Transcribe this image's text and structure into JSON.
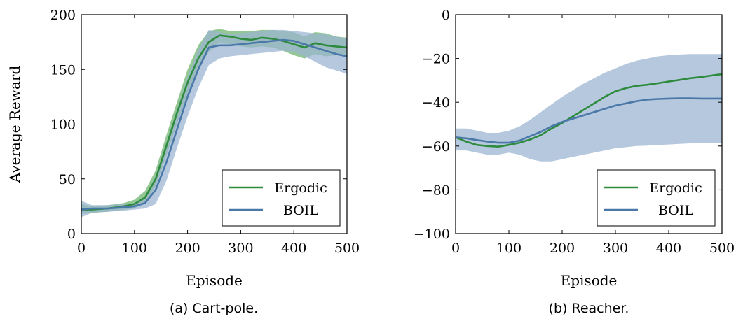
{
  "chart_data": [
    {
      "type": "line",
      "caption": "(a) Cart-pole.",
      "xlabel": "Episode",
      "ylabel": "Average Reward",
      "xlim": [
        0,
        500
      ],
      "ylim": [
        0,
        200
      ],
      "xticks": [
        0,
        100,
        200,
        300,
        400,
        500
      ],
      "yticks": [
        0,
        50,
        100,
        150,
        200
      ],
      "xtick_labels": [
        "0",
        "100",
        "200",
        "300",
        "400",
        "500"
      ],
      "ytick_labels": [
        "0",
        "50",
        "100",
        "150",
        "200"
      ],
      "legend": "bottom-right",
      "grid": false,
      "series": [
        {
          "name": "Ergodic",
          "color": "#2e8b3e",
          "band_color": "#6fb46f",
          "x": [
            0,
            20,
            50,
            80,
            100,
            120,
            140,
            160,
            180,
            200,
            220,
            240,
            260,
            280,
            300,
            320,
            340,
            360,
            380,
            400,
            420,
            440,
            460,
            480,
            500
          ],
          "y": [
            22,
            22,
            23,
            25,
            27,
            33,
            50,
            80,
            110,
            138,
            160,
            175,
            181,
            180,
            178,
            177,
            179,
            178,
            176,
            173,
            170,
            174,
            172,
            171,
            170
          ],
          "lower": [
            18,
            19,
            20,
            22,
            23,
            28,
            43,
            71,
            100,
            127,
            150,
            166,
            174,
            173,
            171,
            170,
            171,
            170,
            167,
            163,
            160,
            164,
            162,
            163,
            162
          ],
          "upper": [
            27,
            25,
            26,
            28,
            31,
            39,
            58,
            90,
            120,
            150,
            172,
            185,
            187,
            185,
            185,
            185,
            186,
            186,
            185,
            184,
            180,
            184,
            183,
            180,
            179
          ]
        },
        {
          "name": "BOIL",
          "color": "#4a78a8",
          "band_color": "#9cb6d2",
          "x": [
            0,
            20,
            50,
            80,
            100,
            120,
            140,
            160,
            180,
            200,
            220,
            240,
            260,
            280,
            300,
            320,
            340,
            360,
            380,
            400,
            420,
            440,
            460,
            480,
            500
          ],
          "y": [
            22,
            23,
            23,
            24,
            25,
            28,
            40,
            65,
            95,
            125,
            150,
            170,
            172,
            172,
            173,
            174,
            175,
            176,
            177,
            176,
            173,
            170,
            167,
            164,
            162
          ],
          "lower": [
            15,
            19,
            20,
            21,
            22,
            23,
            27,
            48,
            78,
            107,
            133,
            154,
            160,
            162,
            163,
            164,
            165,
            166,
            167,
            166,
            162,
            157,
            152,
            149,
            146
          ],
          "upper": [
            30,
            26,
            26,
            27,
            28,
            33,
            53,
            83,
            113,
            143,
            168,
            186,
            184,
            182,
            183,
            184,
            185,
            186,
            186,
            185,
            184,
            183,
            182,
            180,
            178
          ]
        }
      ]
    },
    {
      "type": "line",
      "caption": "(b) Reacher.",
      "xlabel": "Episode",
      "ylabel": "",
      "xlim": [
        0,
        500
      ],
      "ylim": [
        -100,
        0
      ],
      "xticks": [
        0,
        100,
        200,
        300,
        400,
        500
      ],
      "yticks": [
        -100,
        -80,
        -60,
        -40,
        -20,
        0
      ],
      "xtick_labels": [
        "0",
        "100",
        "200",
        "300",
        "400",
        "500"
      ],
      "ytick_labels": [
        "−100",
        "−80",
        "−60",
        "−40",
        "−20",
        "0"
      ],
      "legend": "bottom-right",
      "grid": false,
      "series": [
        {
          "name": "Ergodic",
          "color": "#2e8b3e",
          "band_color": "#6fb46f",
          "x": [
            0,
            20,
            40,
            60,
            80,
            100,
            120,
            140,
            160,
            180,
            200,
            220,
            240,
            260,
            280,
            300,
            320,
            340,
            360,
            380,
            400,
            420,
            440,
            460,
            480,
            500
          ],
          "y": [
            -56,
            -58,
            -59.5,
            -60,
            -60.3,
            -59.5,
            -58.5,
            -57,
            -55,
            -52,
            -49.5,
            -46.5,
            -43.5,
            -40.5,
            -37.5,
            -35,
            -33.5,
            -32.5,
            -32,
            -31.3,
            -30.5,
            -29.8,
            -29,
            -28.5,
            -27.8,
            -27.2
          ],
          "lower": [],
          "upper": []
        },
        {
          "name": "BOIL",
          "color": "#4a78a8",
          "band_color": "#9cb6d2",
          "x": [
            0,
            20,
            40,
            60,
            80,
            100,
            120,
            140,
            160,
            180,
            200,
            220,
            240,
            260,
            280,
            300,
            320,
            340,
            360,
            380,
            400,
            420,
            440,
            460,
            480,
            500
          ],
          "y": [
            -56,
            -56.5,
            -57.3,
            -58,
            -58.5,
            -58.5,
            -57.5,
            -55.5,
            -53.5,
            -51,
            -49,
            -47.5,
            -46,
            -44.5,
            -43,
            -41.5,
            -40.5,
            -39.5,
            -38.8,
            -38.5,
            -38.3,
            -38.2,
            -38.2,
            -38.3,
            -38.3,
            -38.3
          ],
          "lower": [
            -62,
            -62,
            -63,
            -64,
            -64,
            -63,
            -64,
            -66,
            -67,
            -67,
            -66,
            -65,
            -64,
            -63,
            -62,
            -61,
            -60.5,
            -60,
            -59.8,
            -59.5,
            -59.3,
            -59,
            -58.8,
            -58.7,
            -58.7,
            -58.7
          ],
          "upper": [
            -52,
            -52,
            -53,
            -54,
            -54,
            -53,
            -51,
            -48,
            -44.5,
            -41,
            -37.5,
            -34.5,
            -31.5,
            -29,
            -26.5,
            -24.5,
            -22.5,
            -21,
            -20,
            -19,
            -18.5,
            -18.2,
            -18,
            -18,
            -18,
            -18
          ]
        }
      ]
    }
  ]
}
